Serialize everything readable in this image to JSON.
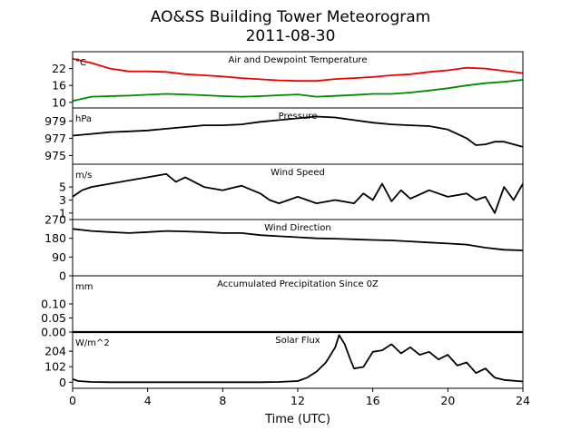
{
  "figure": {
    "title": "AO&SS Building Tower Meteorogram",
    "subtitle": "2011-08-30",
    "xlabel": "Time (UTC)",
    "xticks": [
      "0",
      "4",
      "8",
      "12",
      "16",
      "20",
      "24"
    ]
  },
  "colors": {
    "temperature": "#ee0000",
    "dewpoint": "#008800",
    "line": "#000000"
  },
  "chart_data": [
    {
      "type": "line",
      "title": "Air and Dewpoint Temperature",
      "unit": "°C",
      "xlim": [
        0,
        24
      ],
      "ylim": [
        8,
        28
      ],
      "yticks": [
        10,
        16,
        22
      ],
      "ytick_labels": [
        "10",
        "16",
        "22"
      ],
      "x": [
        0,
        1,
        2,
        3,
        4,
        5,
        6,
        7,
        8,
        9,
        10,
        11,
        12,
        13,
        14,
        15,
        16,
        17,
        18,
        19,
        20,
        21,
        22,
        23,
        24
      ],
      "series": [
        {
          "key": "temperature",
          "values": [
            25.5,
            24.0,
            22.0,
            21.0,
            21.0,
            20.8,
            20.0,
            19.6,
            19.2,
            18.6,
            18.2,
            17.8,
            17.6,
            17.6,
            18.3,
            18.6,
            19.0,
            19.6,
            20.0,
            20.8,
            21.4,
            22.3,
            22.0,
            21.2,
            20.4
          ]
        },
        {
          "key": "dewpoint",
          "values": [
            10.5,
            12.0,
            12.2,
            12.4,
            12.7,
            13.0,
            12.8,
            12.5,
            12.2,
            12.0,
            12.2,
            12.5,
            12.8,
            12.0,
            12.3,
            12.6,
            13.0,
            13.0,
            13.5,
            14.2,
            15.0,
            16.0,
            16.8,
            17.3,
            18.0
          ]
        }
      ]
    },
    {
      "type": "line",
      "title": "Pressure",
      "unit": "hPa",
      "xlim": [
        0,
        24
      ],
      "ylim": [
        974,
        980.5
      ],
      "yticks": [
        975,
        977,
        979
      ],
      "ytick_labels": [
        "975",
        "977",
        "979"
      ],
      "x": [
        0,
        1,
        2,
        3,
        4,
        5,
        6,
        7,
        8,
        9,
        10,
        11,
        12,
        13,
        14,
        15,
        16,
        17,
        18,
        19,
        20,
        21,
        21.5,
        22,
        22.5,
        23,
        24
      ],
      "series": [
        {
          "key": "line",
          "values": [
            977.3,
            977.5,
            977.7,
            977.8,
            977.9,
            978.1,
            978.3,
            978.5,
            978.5,
            978.6,
            978.9,
            979.1,
            979.3,
            979.5,
            979.4,
            979.1,
            978.8,
            978.6,
            978.5,
            978.4,
            978.0,
            977.0,
            976.2,
            976.3,
            976.6,
            976.6,
            976.0
          ]
        }
      ]
    },
    {
      "type": "line",
      "title": "Wind Speed",
      "unit": "m/s",
      "xlim": [
        0,
        24
      ],
      "ylim": [
        0,
        8.5
      ],
      "yticks": [
        1,
        3,
        5
      ],
      "ytick_labels": [
        "1",
        "3",
        "5"
      ],
      "x": [
        0,
        0.5,
        1,
        2,
        3,
        4,
        5,
        5.5,
        6,
        7,
        8,
        9,
        10,
        10.5,
        11,
        12,
        13,
        14,
        15,
        15.5,
        16,
        16.5,
        17,
        17.5,
        18,
        19,
        20,
        21,
        21.5,
        22,
        22.5,
        23,
        23.5,
        24
      ],
      "series": [
        {
          "key": "line",
          "values": [
            3.5,
            4.5,
            5.0,
            5.5,
            6.0,
            6.5,
            7.0,
            5.8,
            6.5,
            5.0,
            4.5,
            5.2,
            4.0,
            3.0,
            2.5,
            3.5,
            2.5,
            3.0,
            2.5,
            4.0,
            3.0,
            5.5,
            2.8,
            4.5,
            3.2,
            4.5,
            3.5,
            4.0,
            3.0,
            3.5,
            1.0,
            5.0,
            3.0,
            5.5
          ]
        }
      ]
    },
    {
      "type": "line",
      "title": "Wind Direction",
      "unit": "",
      "xlim": [
        0,
        24
      ],
      "ylim": [
        0,
        270
      ],
      "yticks": [
        0,
        90,
        180,
        270
      ],
      "ytick_labels": [
        "0",
        "90",
        "180",
        "270"
      ],
      "x": [
        0,
        1,
        2,
        3,
        4,
        5,
        6,
        7,
        8,
        9,
        10,
        11,
        12,
        13,
        14,
        15,
        16,
        17,
        18,
        19,
        20,
        21,
        22,
        23,
        24
      ],
      "series": [
        {
          "key": "line",
          "values": [
            225,
            215,
            210,
            205,
            210,
            215,
            213,
            210,
            205,
            205,
            195,
            190,
            185,
            180,
            178,
            175,
            172,
            170,
            165,
            160,
            155,
            150,
            135,
            125,
            122
          ]
        }
      ]
    },
    {
      "type": "line",
      "title": "Accumulated Precipitation Since 0Z",
      "unit": "mm",
      "xlim": [
        0,
        24
      ],
      "ylim": [
        0,
        0.2
      ],
      "yticks": [
        0,
        0.05,
        0.1
      ],
      "ytick_labels": [
        "0.00",
        "0.05",
        "0.10"
      ],
      "x": [
        0,
        24
      ],
      "series": [
        {
          "key": "line",
          "values": [
            0,
            0
          ]
        }
      ]
    },
    {
      "type": "line",
      "title": "Solar Flux",
      "unit": "W/m^2",
      "xlim": [
        0,
        24
      ],
      "ylim": [
        -40,
        330
      ],
      "yticks": [
        0,
        102,
        204
      ],
      "ytick_labels": [
        "0",
        "102",
        "204"
      ],
      "x": [
        0,
        0.3,
        1,
        2,
        4,
        6,
        8,
        10,
        11,
        12,
        12.5,
        13,
        13.5,
        14,
        14.2,
        14.5,
        14.8,
        15,
        15.5,
        16,
        16.5,
        17,
        17.5,
        18,
        18.5,
        19,
        19.5,
        20,
        20.5,
        21,
        21.5,
        22,
        22.5,
        23,
        24
      ],
      "series": [
        {
          "key": "line",
          "values": [
            20,
            8,
            2,
            0,
            0,
            0,
            0,
            0,
            2,
            8,
            30,
            70,
            130,
            230,
            310,
            250,
            150,
            90,
            100,
            200,
            210,
            250,
            190,
            230,
            180,
            200,
            150,
            180,
            110,
            130,
            60,
            90,
            30,
            15,
            5
          ]
        }
      ]
    }
  ]
}
